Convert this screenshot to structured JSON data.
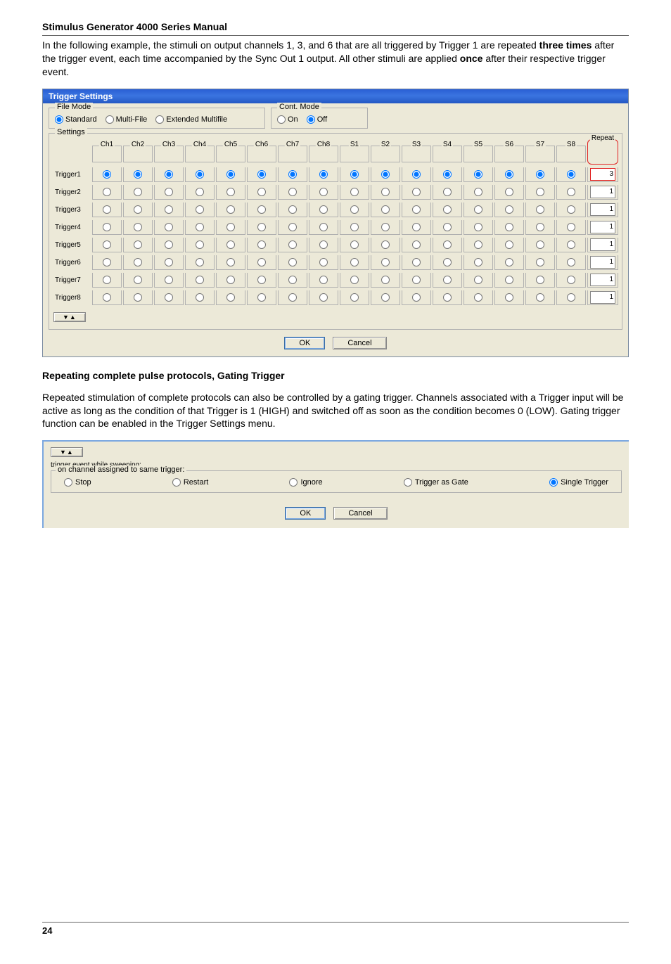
{
  "manual_title": "Stimulus Generator 4000 Series Manual",
  "intro_html": "In the following example, the stimuli on output channels 1, 3, and 6 that are all triggered by Trigger 1 are repeated <b>three times</b> after the trigger event, each time accompanied by the Sync Out 1 output. All other stimuli are applied <b>once</b> after their respective trigger event.",
  "dlg1": {
    "title": "Trigger Settings",
    "file_mode": {
      "legend": "File Mode",
      "options": [
        "Standard",
        "Multi-File",
        "Extended Multifile"
      ],
      "selected": 0
    },
    "cont_mode": {
      "legend": "Cont. Mode",
      "options": [
        "On",
        "Off"
      ],
      "selected": 1
    },
    "settings_legend": "Settings",
    "columns": [
      "Ch1",
      "Ch2",
      "Ch3",
      "Ch4",
      "Ch5",
      "Ch6",
      "Ch7",
      "Ch8",
      "S1",
      "S2",
      "S3",
      "S4",
      "S5",
      "S6",
      "S7",
      "S8"
    ],
    "repeat_header": "Repeat",
    "row_labels": [
      "Trigger1",
      "Trigger2",
      "Trigger3",
      "Trigger4",
      "Trigger5",
      "Trigger6",
      "Trigger7",
      "Trigger8"
    ],
    "repeats": [
      "3",
      "1",
      "1",
      "1",
      "1",
      "1",
      "1",
      "1"
    ],
    "collapse_glyph": "▼▲",
    "ok": "OK",
    "cancel": "Cancel"
  },
  "section2_title": "Repeating complete pulse protocols, Gating Trigger",
  "section2_para": "Repeated stimulation of complete protocols can also be controlled by a gating trigger. Channels associated with a Trigger input will be active as long as the condition of that Trigger is 1 (HIGH) and switched off as soon as the condition becomes 0 (LOW). Gating trigger function can be enabled in the Trigger Settings menu.",
  "dlg2": {
    "label": "trigger event while sweeping:",
    "fieldset_legend": "on channel assigned to same trigger:",
    "options": [
      "Stop",
      "Restart",
      "Ignore",
      "Trigger as Gate",
      "Single Trigger"
    ],
    "selected": 4,
    "ok": "OK",
    "cancel": "Cancel",
    "collapse_glyph": "▼▲"
  },
  "page_number": "24"
}
